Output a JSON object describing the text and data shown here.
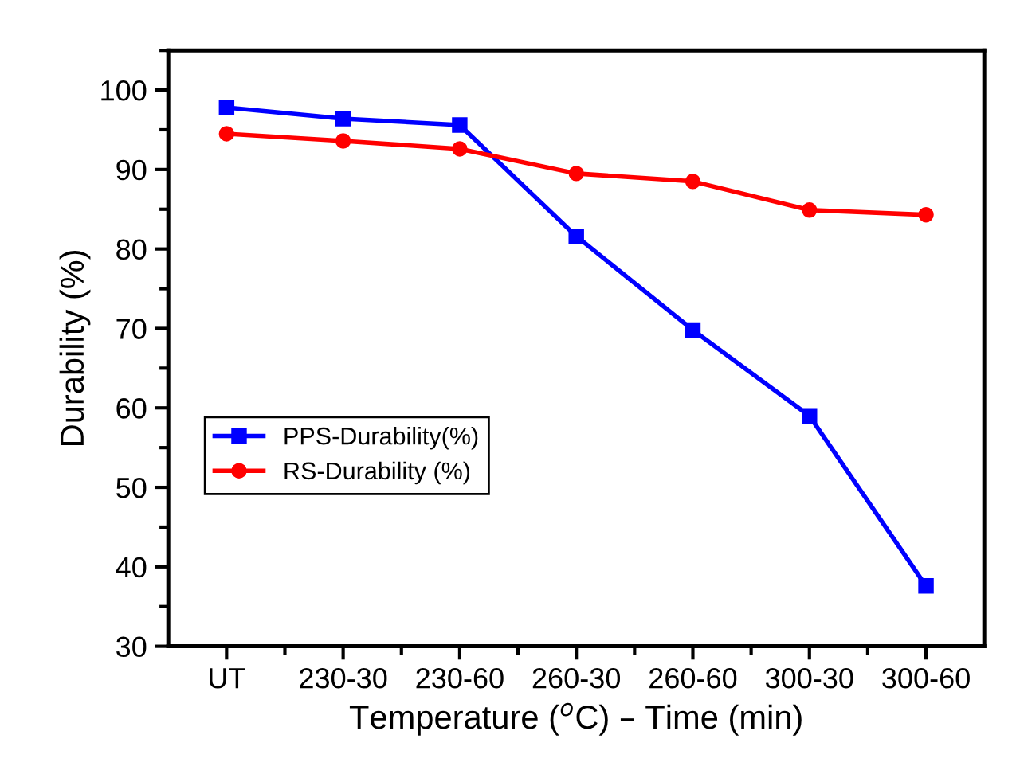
{
  "chart_data": {
    "type": "line",
    "xlabel": "Temperature ($^{o}$C) – Time (min)",
    "ylabel": "Durability (%)",
    "categories": [
      "UT",
      "230-30",
      "230-60",
      "260-30",
      "260-60",
      "300-30",
      "300-60"
    ],
    "series": [
      {
        "name": "PPS-Durability(%)",
        "color": "#0000ff",
        "marker": "square",
        "values": [
          97.8,
          96.4,
          95.6,
          81.6,
          69.8,
          59.0,
          37.6
        ]
      },
      {
        "name": "RS-Durability (%)",
        "color": "#ff0000",
        "marker": "circle",
        "values": [
          94.5,
          93.6,
          92.6,
          89.5,
          88.5,
          84.9,
          84.3
        ]
      }
    ],
    "ylim": [
      30,
      105
    ],
    "yticks": [
      30,
      40,
      50,
      60,
      70,
      80,
      90,
      100
    ],
    "grid": false,
    "legend": "left",
    "line_style": "solid"
  }
}
